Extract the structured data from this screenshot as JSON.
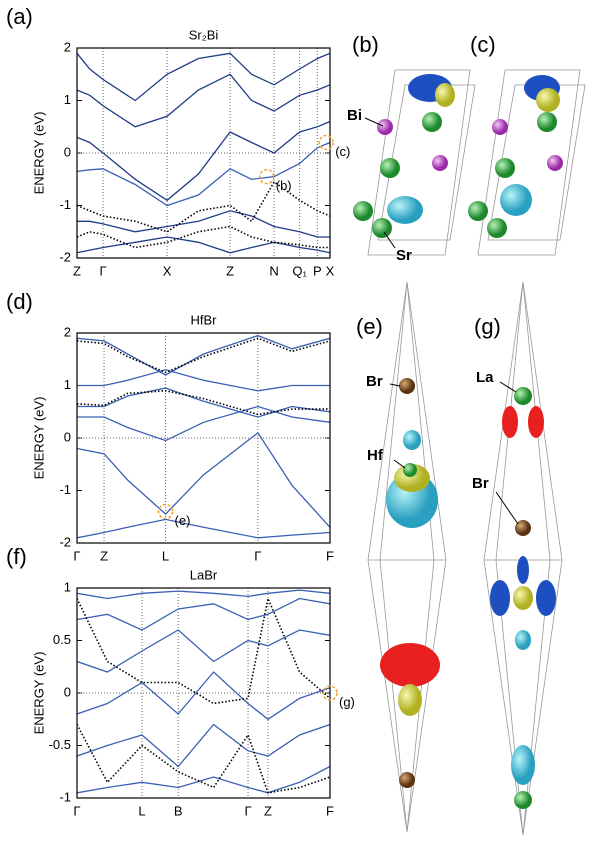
{
  "chart_data": [
    {
      "type": "line",
      "panel_label": "(a)",
      "title": "Sr₂Bi",
      "ylabel": "ENERGY (eV)",
      "x": [
        0,
        0.05,
        0.103,
        0.23,
        0.356,
        0.48,
        0.605,
        0.69,
        0.779,
        0.88,
        0.95,
        1
      ],
      "xlim": [
        0,
        1
      ],
      "ylim": [
        -2,
        2
      ],
      "yticks": [
        -2,
        -1,
        0,
        1,
        2
      ],
      "xticks": [
        {
          "value": 0,
          "label": "Z"
        },
        {
          "value": 0.103,
          "label": "Γ"
        },
        {
          "value": 0.356,
          "label": "X"
        },
        {
          "value": 0.605,
          "label": "Z"
        },
        {
          "value": 0.779,
          "label": "N"
        },
        {
          "value": 0.88,
          "label": "Q₁"
        },
        {
          "value": 0.95,
          "label": "P"
        },
        {
          "value": 1,
          "label": "X"
        }
      ],
      "xgrid": true,
      "zero_line": true,
      "series": [
        {
          "color": "#1f3c88",
          "dash": "solid",
          "values": [
            -1.9,
            -1.85,
            -1.8,
            -1.7,
            -1.6,
            -1.7,
            -1.9,
            -1.8,
            -1.7,
            -1.8,
            -1.85,
            -1.9
          ]
        },
        {
          "color": "#1f3c88",
          "dash": "solid",
          "values": [
            -1.3,
            -1.3,
            -1.35,
            -1.5,
            -1.4,
            -1.3,
            -1.1,
            -1.2,
            -1.4,
            -1.5,
            -1.6,
            -1.6
          ]
        },
        {
          "color": "#3a5fb5",
          "dash": "solid",
          "values": [
            -0.35,
            -0.32,
            -0.3,
            -0.6,
            -1.0,
            -0.8,
            -0.3,
            -0.5,
            -0.45,
            -0.2,
            0.1,
            0.2
          ]
        },
        {
          "color": "#1f3c88",
          "dash": "solid",
          "values": [
            0.3,
            0.2,
            0.0,
            -0.5,
            -0.9,
            -0.4,
            0.4,
            0.2,
            0.0,
            0.4,
            0.5,
            0.6
          ]
        },
        {
          "color": "#1f3c88",
          "dash": "solid",
          "values": [
            1.2,
            1.1,
            0.9,
            0.5,
            0.7,
            1.2,
            1.5,
            1.0,
            0.8,
            1.1,
            1.2,
            1.3
          ]
        },
        {
          "color": "#1f3c88",
          "dash": "solid",
          "values": [
            1.9,
            1.6,
            1.4,
            1.0,
            1.5,
            1.8,
            1.9,
            1.5,
            1.3,
            1.6,
            1.8,
            1.9
          ]
        },
        {
          "color": "#000000",
          "dash": "dotted",
          "values": [
            -1.0,
            -1.1,
            -1.2,
            -1.3,
            -1.5,
            -1.1,
            -1.0,
            -1.3,
            -0.55,
            -0.9,
            -1.1,
            -1.2
          ]
        },
        {
          "color": "#000000",
          "dash": "dotted",
          "values": [
            -1.6,
            -1.5,
            -1.55,
            -1.8,
            -1.7,
            -1.5,
            -1.4,
            -1.6,
            -1.7,
            -1.75,
            -1.8,
            -1.8
          ]
        }
      ],
      "annotations": [
        {
          "text": "(b)",
          "x": 0.75,
          "y": -0.45
        },
        {
          "text": "(c)",
          "x": 0.985,
          "y": 0.2
        }
      ]
    },
    {
      "type": "line",
      "panel_label": "(d)",
      "title": "HfBr",
      "ylabel": "ENERGY (eV)",
      "x": [
        0,
        0.107,
        0.2,
        0.35,
        0.5,
        0.715,
        0.85,
        1
      ],
      "xlim": [
        0,
        1
      ],
      "ylim": [
        -2,
        2
      ],
      "yticks": [
        -2,
        -1,
        0,
        1,
        2
      ],
      "xticks": [
        {
          "value": 0,
          "label": "Γ"
        },
        {
          "value": 0.107,
          "label": "Z"
        },
        {
          "value": 0.35,
          "label": "L"
        },
        {
          "value": 0.715,
          "label": "Γ"
        },
        {
          "value": 1,
          "label": "F"
        }
      ],
      "xgrid": true,
      "zero_line": true,
      "series": [
        {
          "color": "#3a5fb5",
          "dash": "solid",
          "values": [
            -1.9,
            -1.8,
            -1.7,
            -1.55,
            -1.7,
            -1.9,
            -1.85,
            -1.8
          ]
        },
        {
          "color": "#3a5fb5",
          "dash": "solid",
          "values": [
            -0.2,
            -0.3,
            -0.8,
            -1.45,
            -0.7,
            0.1,
            -0.9,
            -1.7
          ]
        },
        {
          "color": "#3a5fb5",
          "dash": "solid",
          "values": [
            0.4,
            0.4,
            0.2,
            -0.05,
            0.3,
            0.6,
            0.4,
            0.3
          ]
        },
        {
          "color": "#3a5fb5",
          "dash": "solid",
          "values": [
            0.6,
            0.6,
            0.8,
            0.95,
            0.7,
            0.4,
            0.6,
            0.5
          ]
        },
        {
          "color": "#3a5fb5",
          "dash": "solid",
          "values": [
            1.0,
            1.0,
            1.1,
            1.3,
            1.1,
            0.9,
            1.0,
            1.0
          ]
        },
        {
          "color": "#3a5fb5",
          "dash": "solid",
          "values": [
            1.9,
            1.85,
            1.6,
            1.2,
            1.6,
            1.95,
            1.7,
            1.9
          ]
        },
        {
          "color": "#000000",
          "dash": "dotted",
          "values": [
            0.65,
            0.62,
            0.85,
            0.9,
            0.75,
            0.45,
            0.55,
            0.55
          ]
        },
        {
          "color": "#000000",
          "dash": "dotted",
          "values": [
            1.85,
            1.8,
            1.55,
            1.25,
            1.55,
            1.9,
            1.65,
            1.85
          ]
        }
      ],
      "annotations": [
        {
          "text": "(e)",
          "x": 0.35,
          "y": -1.4
        }
      ]
    },
    {
      "type": "line",
      "panel_label": "(f)",
      "title": "LaBr",
      "ylabel": "ENERGY (eV)",
      "x": [
        0,
        0.12,
        0.257,
        0.4,
        0.54,
        0.676,
        0.755,
        0.88,
        1
      ],
      "xlim": [
        0,
        1
      ],
      "ylim": [
        -1,
        1
      ],
      "yticks": [
        -1,
        -0.5,
        0,
        0.5,
        1
      ],
      "xticks": [
        {
          "value": 0,
          "label": "Γ"
        },
        {
          "value": 0.257,
          "label": "L"
        },
        {
          "value": 0.4,
          "label": "B"
        },
        {
          "value": 0.676,
          "label": "Γ"
        },
        {
          "value": 0.755,
          "label": "Z"
        },
        {
          "value": 1,
          "label": "F"
        }
      ],
      "xgrid": true,
      "zero_line": true,
      "series": [
        {
          "color": "#3a5fb5",
          "dash": "solid",
          "values": [
            -0.95,
            -0.9,
            -0.85,
            -0.9,
            -0.8,
            -0.9,
            -0.95,
            -0.85,
            -0.7
          ]
        },
        {
          "color": "#3a5fb5",
          "dash": "solid",
          "values": [
            -0.6,
            -0.5,
            -0.4,
            -0.7,
            -0.3,
            -0.55,
            -0.6,
            -0.4,
            -0.3
          ]
        },
        {
          "color": "#3a5fb5",
          "dash": "solid",
          "values": [
            -0.2,
            -0.1,
            0.1,
            -0.2,
            0.2,
            -0.1,
            -0.25,
            -0.05,
            0.05
          ]
        },
        {
          "color": "#3a5fb5",
          "dash": "solid",
          "values": [
            0.3,
            0.2,
            0.4,
            0.6,
            0.3,
            0.5,
            0.45,
            0.6,
            0.55
          ]
        },
        {
          "color": "#3a5fb5",
          "dash": "solid",
          "values": [
            0.7,
            0.75,
            0.6,
            0.8,
            0.85,
            0.7,
            0.75,
            0.9,
            0.85
          ]
        },
        {
          "color": "#3a5fb5",
          "dash": "solid",
          "values": [
            0.95,
            0.9,
            0.95,
            0.97,
            0.95,
            0.92,
            0.95,
            0.98,
            0.95
          ]
        },
        {
          "color": "#000000",
          "dash": "dotted",
          "values": [
            0.9,
            0.3,
            0.1,
            0.1,
            -0.1,
            -0.05,
            0.9,
            0.2,
            -0.05
          ]
        },
        {
          "color": "#000000",
          "dash": "dotted",
          "values": [
            -0.3,
            -0.85,
            -0.5,
            -0.75,
            -0.9,
            -0.4,
            -0.95,
            -0.9,
            -0.8
          ]
        }
      ],
      "annotations": [
        {
          "text": "(g)",
          "x": 1,
          "y": 0
        }
      ]
    }
  ],
  "structures": {
    "b": {
      "label": "(b)",
      "atoms": [
        "Bi",
        "Sr"
      ]
    },
    "c": {
      "label": "(c)"
    },
    "e": {
      "label": "(e)",
      "atoms": [
        "Br",
        "Hf"
      ]
    },
    "g": {
      "label": "(g)",
      "atoms": [
        "La",
        "Br"
      ]
    }
  }
}
